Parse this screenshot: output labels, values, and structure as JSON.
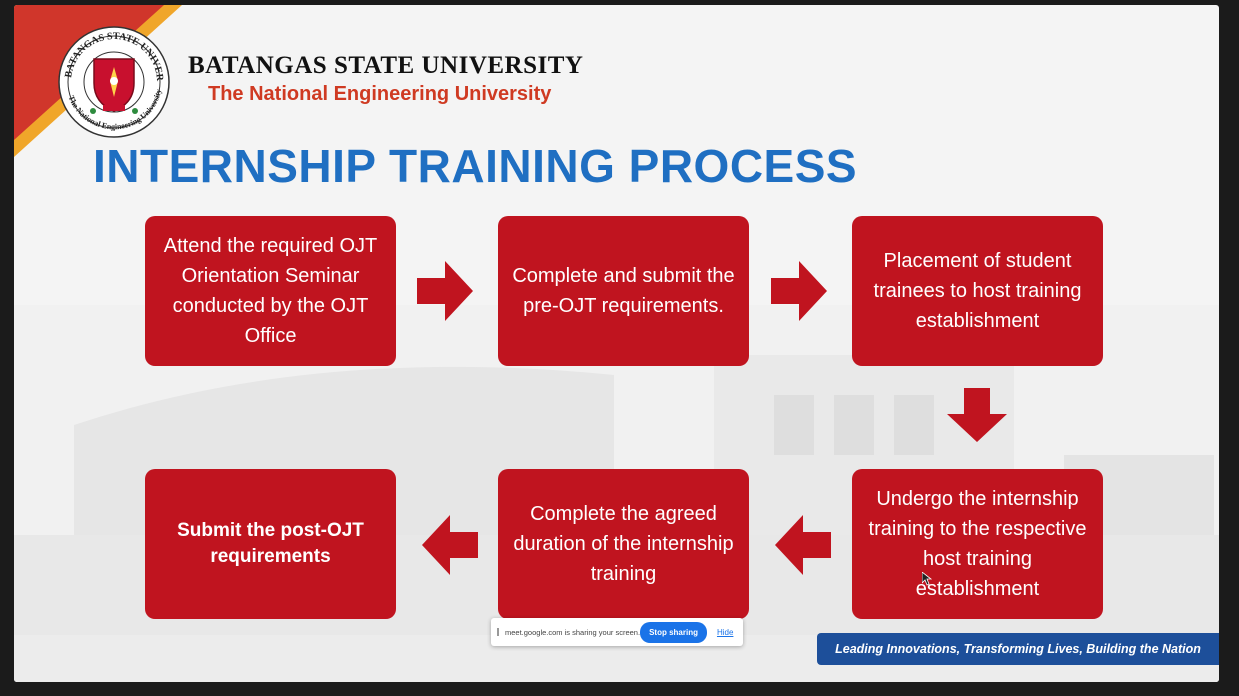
{
  "header": {
    "university_name": "BATANGAS STATE UNIVERSITY",
    "university_subtitle": "The National Engineering University",
    "seal_text": "BATANGAS STATE UNIVERSITY · The National Engineering University · PHILIPPINES · 1903"
  },
  "slide": {
    "title": "INTERNSHIP TRAINING PROCESS",
    "steps": [
      "Attend the required OJT Orientation Seminar conducted by the OJT Office",
      "Complete and submit the pre-OJT requirements.",
      "Placement of student trainees to host training establishment",
      "Undergo the internship training to the respective host training establishment",
      "Complete the agreed duration of the internship training",
      "Submit the post-OJT requirements"
    ],
    "tagline": "Leading Innovations, Transforming Lives, Building the Nation"
  },
  "share_bar": {
    "text": "meet.google.com is sharing your screen.",
    "stop_label": "Stop sharing",
    "hide_label": "Hide"
  },
  "colors": {
    "step_box": "#c0141f",
    "title": "#1f6fc2",
    "subtitle": "#cf3a22",
    "tagline_bg": "#1d4f9a",
    "corner_red": "#d0362b",
    "corner_yellow": "#f0a62a"
  }
}
